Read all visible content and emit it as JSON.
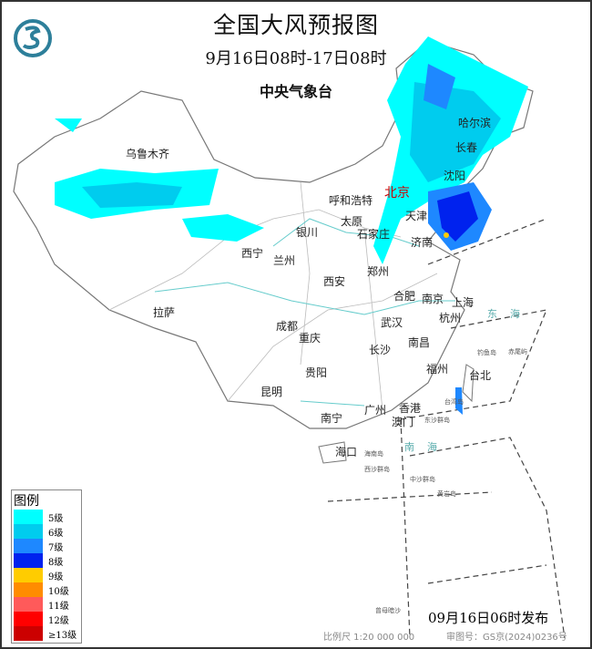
{
  "header": {
    "title": "全国大风预报图",
    "period": "9月16日08时-17日08时",
    "issuer": "中央气象台"
  },
  "cities": [
    "乌鲁木齐",
    "哈尔滨",
    "长春",
    "沈阳",
    "北京",
    "天津",
    "呼和浩特",
    "太原",
    "石家庄",
    "银川",
    "济南",
    "西宁",
    "兰州",
    "西安",
    "郑州",
    "合肥",
    "南京",
    "上海",
    "拉萨",
    "成都",
    "武汉",
    "杭州",
    "重庆",
    "南昌",
    "长沙",
    "福州",
    "台北",
    "贵阳",
    "昆明",
    "南宁",
    "广州",
    "香港",
    "澳门",
    "海口"
  ],
  "small_labels": [
    "钓鱼岛",
    "赤尾屿",
    "台湾岛",
    "东沙群岛",
    "海南岛",
    "西沙群岛",
    "中沙群岛",
    "黄岩岛",
    "曾母暗沙"
  ],
  "seas": [
    "东海",
    "南海"
  ],
  "legend": {
    "title": "图例",
    "items": [
      {
        "label": "5级",
        "color": "#00ffff"
      },
      {
        "label": "6级",
        "color": "#00ccee"
      },
      {
        "label": "7级",
        "color": "#1e88ff"
      },
      {
        "label": "8级",
        "color": "#0022ee"
      },
      {
        "label": "9级",
        "color": "#ffcc00"
      },
      {
        "label": "10级",
        "color": "#ff8c00"
      },
      {
        "label": "11级",
        "color": "#ff5a5a"
      },
      {
        "label": "12级",
        "color": "#ff0000"
      },
      {
        "label": "≥13级",
        "color": "#cc0000"
      }
    ]
  },
  "footer": {
    "issued": "09月16日06时发布",
    "scale": "比例尺 1:20 000 000",
    "review": "审图号：GS京(2024)0236号"
  }
}
